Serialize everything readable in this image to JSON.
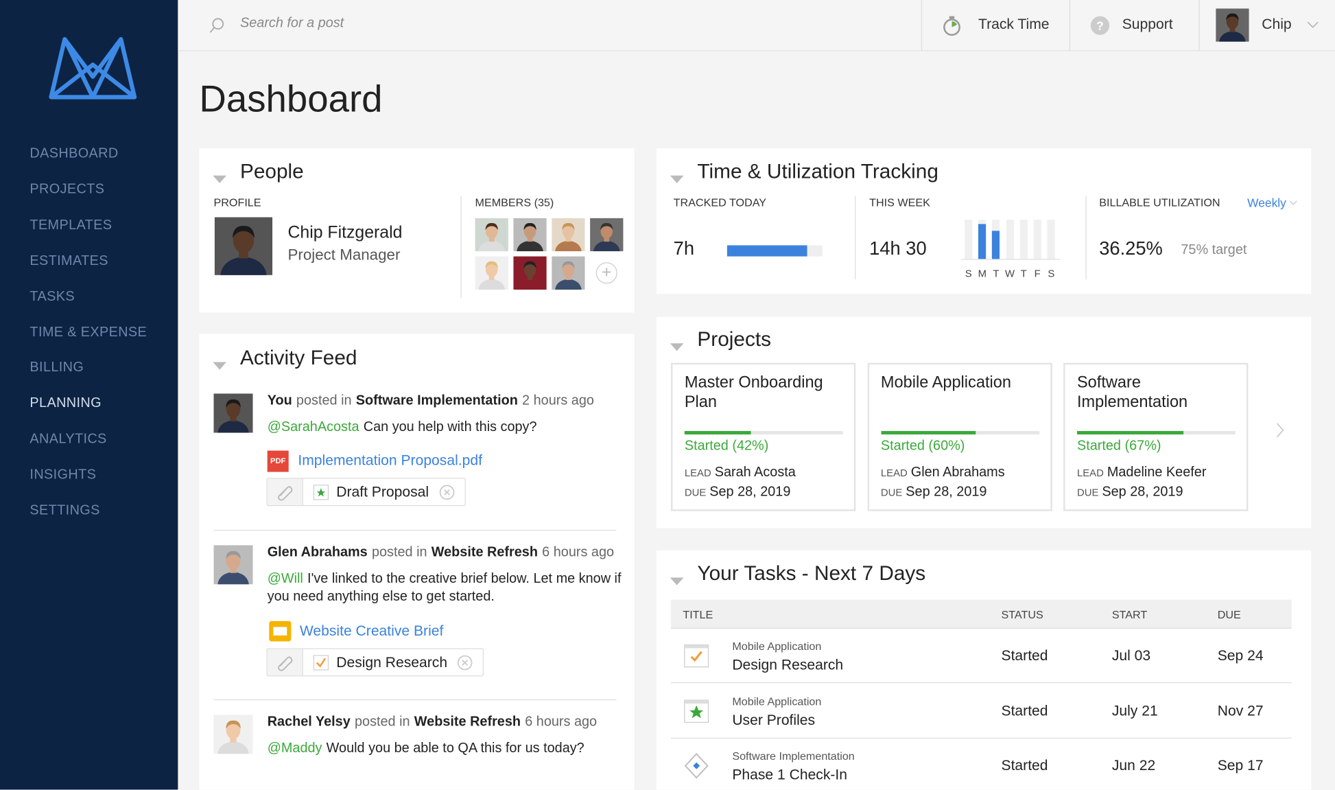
{
  "nav": {
    "items": [
      "DASHBOARD",
      "PROJECTS",
      "TEMPLATES",
      "ESTIMATES",
      "TASKS",
      "TIME & EXPENSE",
      "BILLING",
      "PLANNING",
      "ANALYTICS",
      "INSIGHTS",
      "SETTINGS"
    ],
    "active": "PLANNING"
  },
  "header": {
    "search_placeholder": "Search for a post",
    "track_time": "Track Time",
    "support_icon": "?",
    "support": "Support",
    "user": "Chip"
  },
  "page_title": "Dashboard",
  "people": {
    "title": "People",
    "profile_label": "PROFILE",
    "name": "Chip Fitzgerald",
    "role": "Project Manager",
    "members_label": "MEMBERS (35)",
    "add_icon": "+"
  },
  "time_tracking": {
    "title": "Time & Utilization Tracking",
    "tracked_today_label": "TRACKED TODAY",
    "tracked_today": "7h",
    "tracked_today_progress": 84,
    "this_week_label": "THIS WEEK",
    "this_week": "14h 30",
    "week_days": [
      "S",
      "M",
      "T",
      "W",
      "T",
      "F",
      "S"
    ],
    "week_hours": [
      0,
      8,
      6.5,
      0,
      0,
      0,
      0
    ],
    "week_ylim": [
      0,
      9
    ],
    "utilization_label": "BILLABLE UTILIZATION",
    "period": "Weekly",
    "utilization": "36.25%",
    "target": "75% target"
  },
  "projects": {
    "title": "Projects",
    "lead_label": "LEAD",
    "due_label": "DUE",
    "cards": [
      {
        "name": "Master Onboarding Plan",
        "status": "Started (42%)",
        "progress": 42,
        "lead": "Sarah Acosta",
        "due": "Sep 28, 2019"
      },
      {
        "name": "Mobile Application",
        "status": "Started (60%)",
        "progress": 60,
        "lead": "Glen Abrahams",
        "due": "Sep 28, 2019"
      },
      {
        "name": "Software Implementation",
        "status": "Started (67%)",
        "progress": 67,
        "lead": "Madeline Keefer",
        "due": "Sep 28, 2019"
      }
    ]
  },
  "activity": {
    "title": "Activity Feed",
    "posts": [
      {
        "author": "You",
        "verb": "posted in",
        "project": "Software Implementation",
        "time": "2 hours ago",
        "mention": "@SarahAcosta",
        "message": "Can you help with this copy?",
        "attachment_badge": "PDF",
        "attachment": "Implementation Proposal.pdf",
        "tag": "Draft Proposal"
      },
      {
        "author": "Glen Abrahams",
        "verb": "posted in",
        "project": "Website Refresh",
        "time": "6 hours ago",
        "mention": "@Will",
        "message": "I've linked to the creative brief below. Let me know if you need anything else to get started.",
        "attachment": "Website Creative Brief",
        "tag": "Design Research"
      },
      {
        "author": "Rachel Yelsy",
        "verb": "posted in",
        "project": "Website Refresh",
        "time": "6 hours ago",
        "mention": "@Maddy",
        "message": "Would you be able to QA this for us today?"
      }
    ]
  },
  "tasks": {
    "title": "Your Tasks - Next 7 Days",
    "columns": [
      "TITLE",
      "STATUS",
      "START",
      "DUE"
    ],
    "rows": [
      {
        "project": "Mobile Application",
        "name": "Design Research",
        "status": "Started",
        "start": "Jul 03",
        "due": "Sep 24"
      },
      {
        "project": "Mobile Application",
        "name": "User Profiles",
        "status": "Started",
        "start": "July 21",
        "due": "Nov 27"
      },
      {
        "project": "Software Implementation",
        "name": "Phase 1 Check-In",
        "status": "Started",
        "start": "Jun 22",
        "due": "Sep 17"
      }
    ]
  }
}
